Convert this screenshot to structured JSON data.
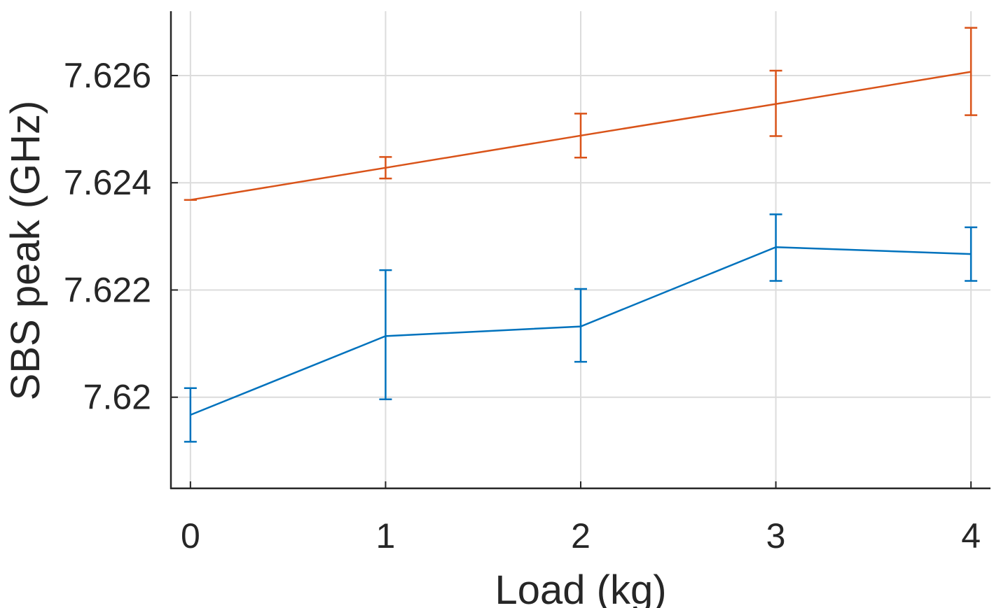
{
  "chart_data": {
    "type": "line",
    "title": "",
    "xlabel": "Load (kg)",
    "ylabel": "SBS peak (GHz)",
    "x": [
      0,
      1,
      2,
      3,
      4
    ],
    "x_tick_labels": [
      "0",
      "1",
      "2",
      "3",
      "4"
    ],
    "y_ticks": [
      7.62,
      7.622,
      7.624,
      7.626
    ],
    "y_tick_labels": [
      "7.62",
      "7.622",
      "7.624",
      "7.626"
    ],
    "xlim": [
      -0.1,
      4.1
    ],
    "ylim": [
      7.6183,
      7.6272
    ],
    "grid": true,
    "legend": "none",
    "series": [
      {
        "color": "#0072BD",
        "values": [
          7.61967,
          7.62114,
          7.62132,
          7.6228,
          7.62267
        ],
        "err_low": [
          7.61917,
          7.61996,
          7.62066,
          7.62217,
          7.62217
        ],
        "err_high": [
          7.62017,
          7.62237,
          7.62202,
          7.62341,
          7.62317
        ]
      },
      {
        "color": "#D95319",
        "values": [
          7.62368,
          7.62428,
          7.62488,
          7.62547,
          7.62607
        ],
        "err_low": [
          7.62368,
          7.62408,
          7.62447,
          7.62487,
          7.62526
        ],
        "err_high": [
          7.62368,
          7.62448,
          7.62529,
          7.62609,
          7.62689
        ]
      }
    ]
  }
}
